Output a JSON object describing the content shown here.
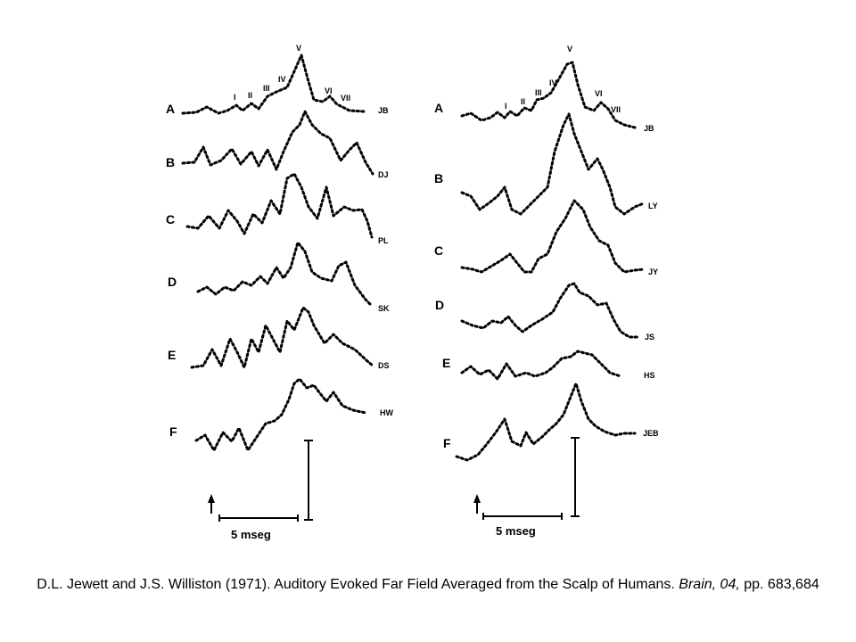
{
  "panels": [
    {
      "id": "left",
      "rows": [
        {
          "letter": "A",
          "subject": "JB"
        },
        {
          "letter": "B",
          "subject": "DJ"
        },
        {
          "letter": "C",
          "subject": "PL"
        },
        {
          "letter": "D",
          "subject": "SK"
        },
        {
          "letter": "E",
          "subject": "DS"
        },
        {
          "letter": "F",
          "subject": "HW"
        }
      ],
      "peaks": [
        "I",
        "II",
        "III",
        "IV",
        "V",
        "VI",
        "VII"
      ],
      "scale_label": "5 mseg"
    },
    {
      "id": "right",
      "rows": [
        {
          "letter": "A",
          "subject": "JB"
        },
        {
          "letter": "B",
          "subject": "LY"
        },
        {
          "letter": "C",
          "subject": "JY"
        },
        {
          "letter": "D",
          "subject": "JS"
        },
        {
          "letter": "E",
          "subject": "HS"
        },
        {
          "letter": "F",
          "subject": "JEB"
        }
      ],
      "peaks": [
        "I",
        "II",
        "III",
        "IV",
        "V",
        "VI",
        "VII"
      ],
      "scale_label": "5 mseg"
    }
  ],
  "caption": {
    "part1": "D.L. Jewett and J.S. Williston (1971). Auditory Evoked Far Field Averaged from the Scalp of Humans. ",
    "journal": "Brain, 04,",
    "part2": " pp. 683,684"
  }
}
